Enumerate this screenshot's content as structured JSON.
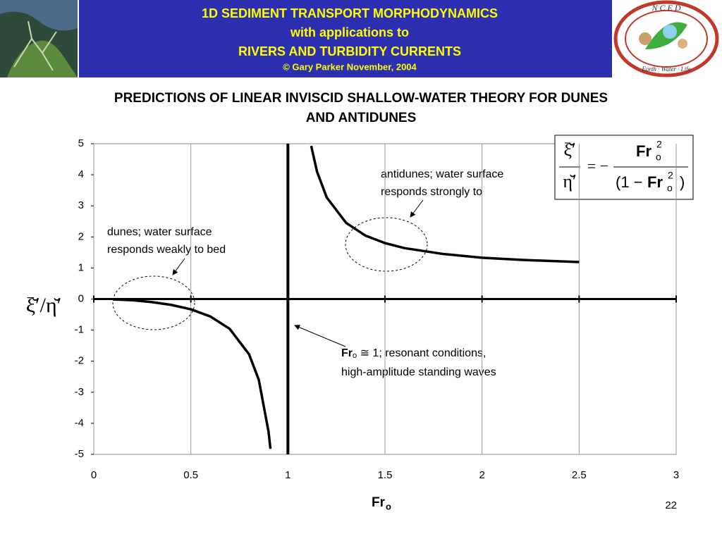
{
  "header": {
    "lines": [
      "1D SEDIMENT TRANSPORT MORPHODYNAMICS",
      "with applications to",
      "RIVERS AND TURBIDITY CURRENTS"
    ],
    "copyright": "© Gary Parker November, 2004",
    "logo_top": "N C E D",
    "logo_bottom": "Earth · Water · Life"
  },
  "chart_data": {
    "type": "line",
    "title": "PREDICTIONS OF LINEAR INVISCID SHALLOW-WATER THEORY FOR DUNES",
    "title_line2": "AND ANTIDUNES",
    "x_label": {
      "main": "Fr",
      "sub": "o"
    },
    "y_label": "ξ̆′/η̆′",
    "x": [
      0.1,
      0.2,
      0.3,
      0.4,
      0.5,
      0.6,
      0.7,
      0.8,
      0.85,
      0.9,
      0.91,
      1,
      1.12,
      1.15,
      1.2,
      1.3,
      1.4,
      1.5,
      1.6,
      1.8,
      2,
      2.2,
      2.5
    ],
    "series": [
      {
        "color": "#000000",
        "values": [
          -0.01,
          -0.04,
          -0.1,
          -0.19,
          -0.33,
          -0.56,
          -0.96,
          -1.78,
          -2.6,
          -4.26,
          -4.82,
          null,
          4.93,
          4.1,
          3.27,
          2.45,
          2.04,
          1.8,
          1.64,
          1.45,
          1.33,
          1.26,
          1.19
        ]
      }
    ],
    "vlines": [
      1
    ],
    "xlim": [
      0,
      3
    ],
    "ylim": [
      -5,
      5
    ],
    "xticks": [
      0,
      0.5,
      1,
      1.5,
      2,
      2.5,
      3
    ],
    "yticks": [
      5,
      4,
      3,
      2,
      1,
      0,
      -1,
      -2,
      -3,
      -4,
      -5
    ],
    "grid": "x",
    "annotations": {
      "dunes": [
        "dunes; water surface",
        "responds weakly to bed"
      ],
      "antidunes": [
        "antidunes; water surface",
        "responds strongly to"
      ],
      "resonant": {
        "main": "Fr",
        "sub": "o",
        "rest": " ≅ 1; resonant conditions,",
        "line2": "high-amplitude standing waves"
      }
    },
    "formula": {
      "lhs_num": "ξ̆′",
      "lhs_den": "η̆′",
      "equals": "= −",
      "num_main": "Fr",
      "num_sub": "o",
      "num_sup": "2",
      "den_open": "(1 −",
      "den_main": "Fr",
      "den_sub": "o",
      "den_sup": "2",
      "den_close": ")"
    }
  },
  "page_number": "22"
}
